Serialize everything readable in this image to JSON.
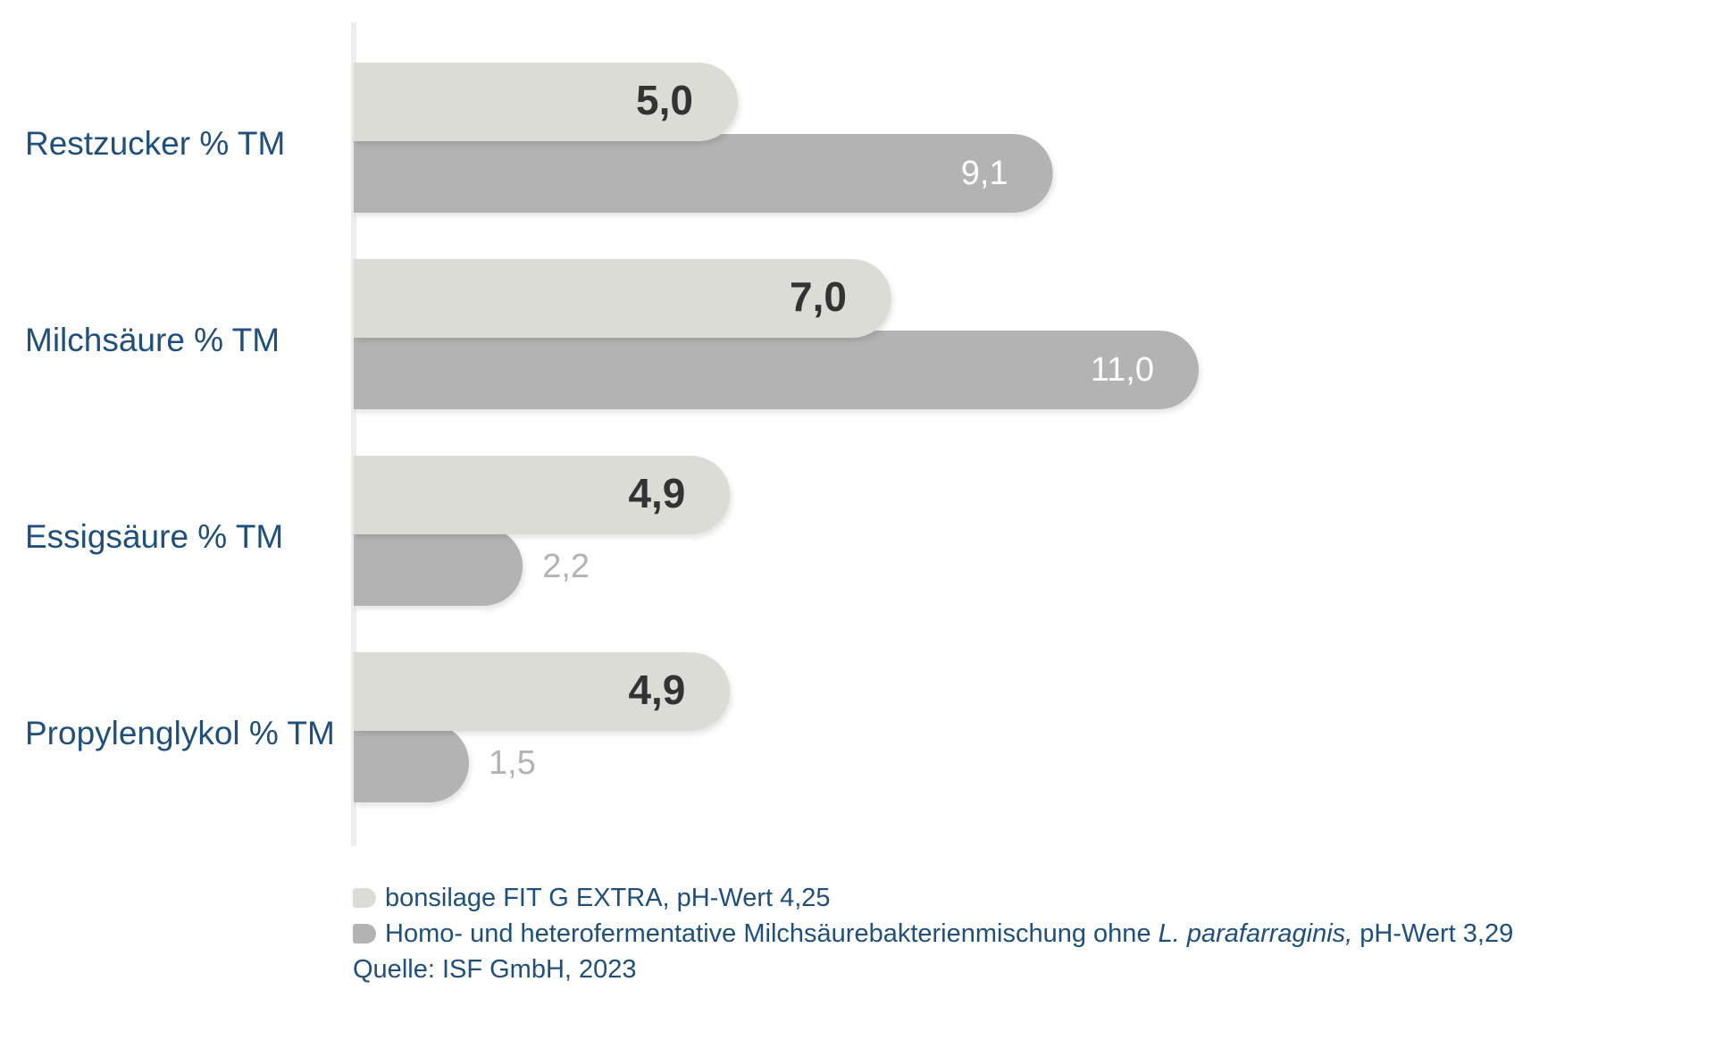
{
  "chart_data": {
    "type": "bar",
    "orientation": "horizontal",
    "categories": [
      "Restzucker % TM",
      "Milchsäure % TM",
      "Essigsäure % TM",
      "Propylenglykol % TM"
    ],
    "series": [
      {
        "name": "bonsilage FIT G EXTRA, pH-Wert 4,25",
        "values": [
          5.0,
          7.0,
          4.9,
          4.9
        ],
        "labels": [
          "5,0",
          "7,0",
          "4,9",
          "4,9"
        ],
        "color": "#dcdcd7",
        "label_color": "#333333"
      },
      {
        "name": "Homo- und heterofermentative Milchsäurebakterienmischung ohne L. parafarraginis, pH-Wert 3,29",
        "values": [
          9.1,
          11.0,
          2.2,
          1.5
        ],
        "labels": [
          "9,1",
          "11,0",
          "2,2",
          "1,5"
        ],
        "color": "#b3b3b3",
        "label_color": "#ffffff",
        "label_color_outside": "#b3b3b3"
      }
    ],
    "xlim": [
      0,
      16
    ],
    "grid": false,
    "legend_position": "bottom-left"
  },
  "legend": {
    "item1": "bonsilage FIT G EXTRA, pH-Wert 4,25",
    "item2_pre": "Homo- und heterofermentative Milchsäurebakterienmischung ohne ",
    "item2_italic": "L. parafarraginis,",
    "item2_post": " pH-Wert 3,29",
    "source": "Quelle: ISF GmbH, 2023"
  },
  "colors": {
    "category_label": "#1f4f7a",
    "legend_text": "#1f4f7a",
    "axis_line": "#e8e8e8"
  }
}
